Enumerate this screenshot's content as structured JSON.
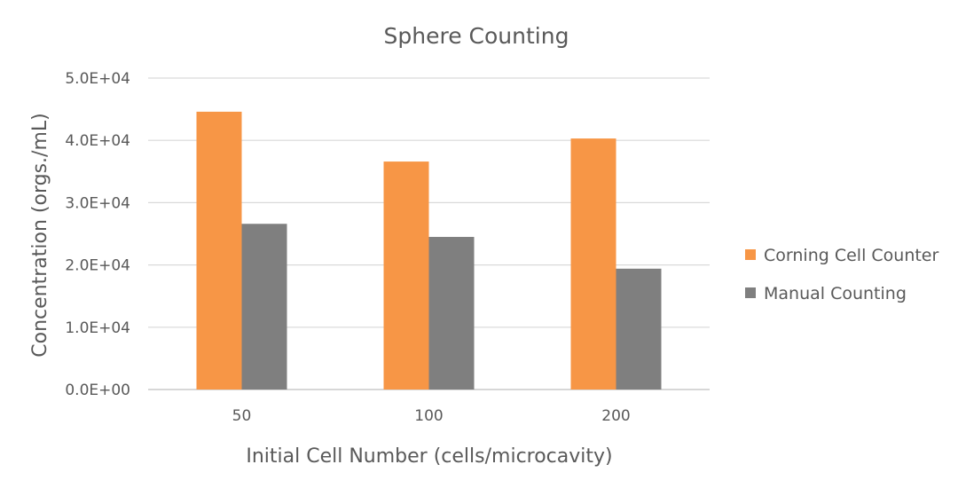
{
  "chart_data": {
    "type": "bar",
    "title": "Sphere Counting",
    "xlabel": "Initial Cell Number (cells/microcavity)",
    "ylabel": "Concentration (orgs./mL)",
    "categories": [
      "50",
      "100",
      "200"
    ],
    "series": [
      {
        "name": "Corning Cell Counter",
        "color": "#F79646",
        "values": [
          44600,
          36600,
          40300
        ]
      },
      {
        "name": "Manual Counting",
        "color": "#7F7F7F",
        "values": [
          26600,
          24500,
          19400
        ]
      }
    ],
    "ylim": [
      0,
      50000
    ],
    "yticks": [
      0,
      10000,
      20000,
      30000,
      40000,
      50000
    ],
    "ytick_labels": [
      "0.0E+00",
      "1.0E+04",
      "2.0E+04",
      "3.0E+04",
      "4.0E+04",
      "5.0E+04"
    ],
    "grid": true,
    "legend_position": "right",
    "colors": {
      "gridline": "#D9D9D9",
      "axis_line": "#BFBFBF",
      "text": "#595959"
    }
  }
}
